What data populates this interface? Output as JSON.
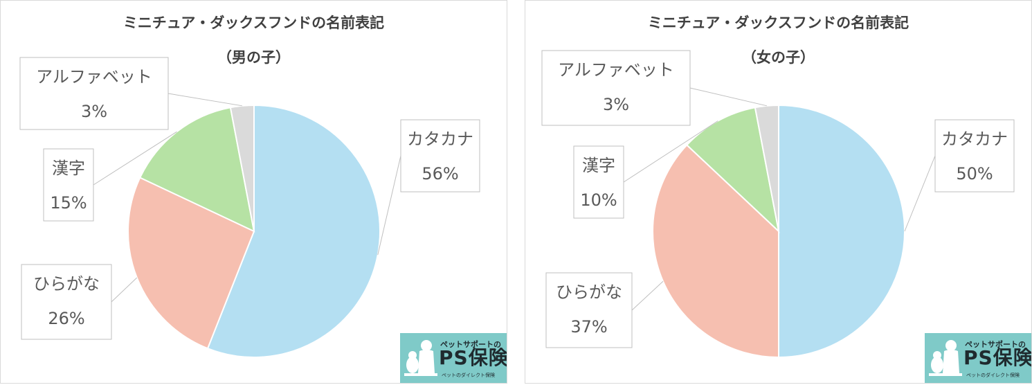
{
  "chart_data": [
    {
      "type": "pie",
      "title": "ミニチュア・ダックスフンドの名前表記",
      "subtitle": "（男の子）",
      "slices": [
        {
          "label": "カタカナ",
          "value": 56,
          "value_label": "56%",
          "color": "#b4dff2"
        },
        {
          "label": "ひらがな",
          "value": 26,
          "value_label": "26%",
          "color": "#f6bfb0"
        },
        {
          "label": "漢字",
          "value": 15,
          "value_label": "15%",
          "color": "#b6e2a4"
        },
        {
          "label": "アルファベット",
          "value": 3,
          "value_label": "3%",
          "color": "#dadada"
        }
      ]
    },
    {
      "type": "pie",
      "title": "ミニチュア・ダックスフンドの名前表記",
      "subtitle": "（女の子）",
      "slices": [
        {
          "label": "カタカナ",
          "value": 50,
          "value_label": "50%",
          "color": "#b4dff2"
        },
        {
          "label": "ひらがな",
          "value": 37,
          "value_label": "37%",
          "color": "#f6bfb0"
        },
        {
          "label": "漢字",
          "value": 10,
          "value_label": "10%",
          "color": "#b6e2a4"
        },
        {
          "label": "アルファベット",
          "value": 3,
          "value_label": "3%",
          "color": "#dadada"
        }
      ]
    }
  ],
  "logo": {
    "tagline": "ペットサポートの",
    "name": "PS保険",
    "subline": "ペットのダイレクト保険",
    "color": "#7fcac8"
  }
}
